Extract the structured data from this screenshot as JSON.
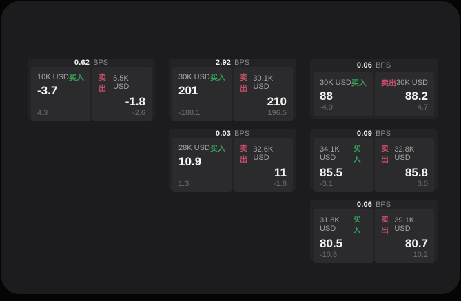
{
  "labels": {
    "bps_unit": "BPS",
    "buy": "买入",
    "sell": "卖出"
  },
  "colors": {
    "window_bg": "#1c1c1e",
    "card_bg": "#232325",
    "panel_bg": "#2b2b2d",
    "buy_accent": "#36a05c",
    "sell_accent": "#c14f68",
    "primary_text": "#f5f5f5",
    "muted_text": "#8a8a8a"
  },
  "cards": [
    {
      "bps": "0.62",
      "buy": {
        "notional": "10K USD",
        "price": "-3.7",
        "delta": "4.3"
      },
      "sell": {
        "notional": "5.5K USD",
        "price": "-1.8",
        "delta": "-2.6"
      }
    },
    {
      "bps": "2.92",
      "buy": {
        "notional": "30K USD",
        "price": "201",
        "delta": "-188.1"
      },
      "sell": {
        "notional": "30.1K USD",
        "price": "210",
        "delta": "196.5"
      }
    },
    {
      "bps": "0.06",
      "buy": {
        "notional": "30K USD",
        "price": "88",
        "delta": "-4.9"
      },
      "sell": {
        "notional": "30K USD",
        "price": "88.2",
        "delta": "4.7"
      }
    },
    {
      "bps": "0.03",
      "buy": {
        "notional": "28K USD",
        "price": "10.9",
        "delta": "1.3"
      },
      "sell": {
        "notional": "32.6K USD",
        "price": "11",
        "delta": "-1.8"
      }
    },
    {
      "bps": "0.09",
      "buy": {
        "notional": "34.1K USD",
        "price": "85.5",
        "delta": "-3.1"
      },
      "sell": {
        "notional": "32.8K USD",
        "price": "85.8",
        "delta": "3.0"
      }
    },
    {
      "bps": "0.06",
      "buy": {
        "notional": "31.8K USD",
        "price": "80.5",
        "delta": "-10.8"
      },
      "sell": {
        "notional": "39.1K USD",
        "price": "80.7",
        "delta": "10.2"
      }
    }
  ]
}
